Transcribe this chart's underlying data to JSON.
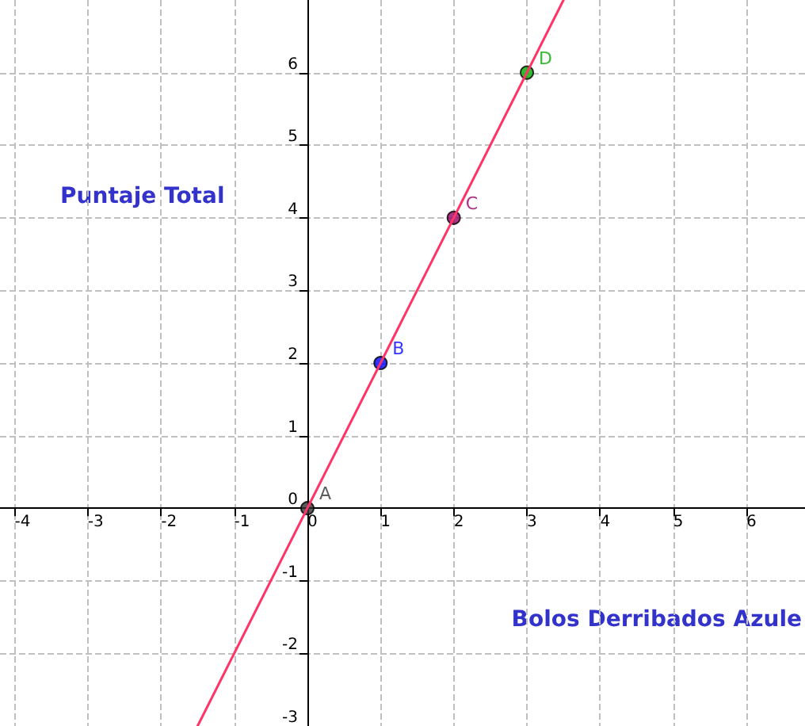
{
  "chart_data": {
    "type": "line",
    "xlabel": "Bolos Derribados Azule",
    "ylabel": "Puntaje Total",
    "xlim": [
      -4.2,
      6.8
    ],
    "ylim": [
      -3,
      7
    ],
    "xticks": [
      -4,
      -3,
      -2,
      -1,
      0,
      1,
      2,
      3,
      4,
      5,
      6
    ],
    "yticks": [
      -3,
      -2,
      -1,
      0,
      1,
      2,
      3,
      4,
      5,
      6
    ],
    "grid": true,
    "marker": "circle",
    "line_style": "solid",
    "legend": false,
    "series": [
      {
        "marker": "none",
        "color": "#ff3366",
        "x": [
          -1.5,
          3.5
        ],
        "values": [
          -3,
          7
        ]
      },
      {
        "type": "scatter",
        "name": "A",
        "color": "#333333",
        "x": [
          0
        ],
        "values": [
          0
        ]
      },
      {
        "type": "scatter",
        "name": "B",
        "color": "#0000ff",
        "x": [
          1
        ],
        "values": [
          2
        ]
      },
      {
        "type": "scatter",
        "name": "C",
        "color": "#990066",
        "x": [
          2
        ],
        "values": [
          4
        ]
      },
      {
        "type": "scatter",
        "name": "D",
        "color": "#00aa00",
        "x": [
          3
        ],
        "values": [
          6
        ]
      }
    ]
  }
}
